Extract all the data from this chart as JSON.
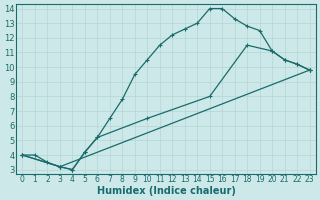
{
  "xlabel": "Humidex (Indice chaleur)",
  "xlim": [
    -0.5,
    23.5
  ],
  "ylim": [
    2.7,
    14.3
  ],
  "xticks": [
    0,
    1,
    2,
    3,
    4,
    5,
    6,
    7,
    8,
    9,
    10,
    11,
    12,
    13,
    14,
    15,
    16,
    17,
    18,
    19,
    20,
    21,
    22,
    23
  ],
  "yticks": [
    3,
    4,
    5,
    6,
    7,
    8,
    9,
    10,
    11,
    12,
    13,
    14
  ],
  "bg_color": "#cde8e8",
  "line_color": "#1a6b6b",
  "grid_color": "#b8d8d8",
  "line1_x": [
    0,
    1,
    2,
    3,
    4,
    5,
    6,
    7,
    8,
    9,
    10,
    11,
    12,
    13,
    14,
    15,
    16,
    17,
    18,
    19,
    20,
    21,
    22,
    23
  ],
  "line1_y": [
    4,
    4,
    3.5,
    3.2,
    3.0,
    4.2,
    5.2,
    6.5,
    7.8,
    9.5,
    10.5,
    11.5,
    12.2,
    12.6,
    13.0,
    14.0,
    14.0,
    13.3,
    12.8,
    12.5,
    11.1,
    10.5,
    10.2,
    9.8
  ],
  "line2_x": [
    0,
    3,
    23
  ],
  "line2_y": [
    4,
    3.2,
    9.8
  ],
  "line3_x": [
    0,
    3,
    4,
    5,
    6,
    10,
    15,
    18,
    20,
    21,
    22,
    23
  ],
  "line3_y": [
    4,
    3.2,
    3.0,
    4.2,
    5.2,
    6.5,
    8.0,
    11.5,
    11.1,
    10.5,
    10.2,
    9.8
  ]
}
